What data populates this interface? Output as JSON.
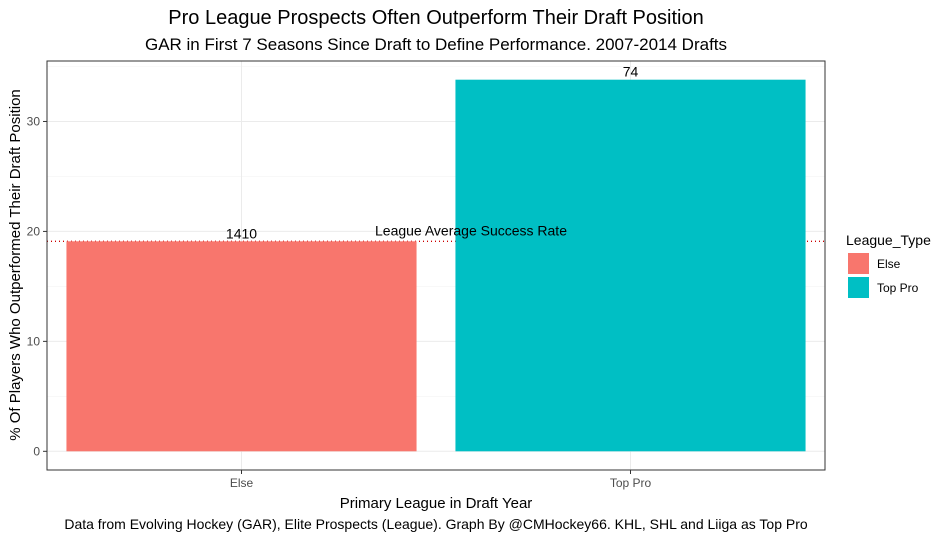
{
  "chart_data": {
    "type": "bar",
    "title": "Pro League Prospects Often Outperform Their Draft Position",
    "subtitle": "GAR in First 7 Seasons Since Draft to Define Performance. 2007-2014 Drafts",
    "xlabel": "Primary League in Draft Year",
    "ylabel": "% Of Players Who Outperformed Their Draft Position",
    "caption": "Data from Evolving Hockey (GAR), Elite Prospects (League). Graph By @CMHockey66. KHL, SHL and Liiga as Top Pro",
    "categories": [
      "Else",
      "Top Pro"
    ],
    "values": [
      19.1,
      33.8
    ],
    "bar_labels": [
      "1410",
      "74"
    ],
    "colors": [
      "#F8766D",
      "#00BFC4"
    ],
    "ylim": [
      -1.7,
      35.5
    ],
    "yticks": [
      0,
      10,
      20,
      30
    ],
    "grid": true,
    "reference_line": {
      "value": 19.1,
      "label": "League Average Success Rate",
      "color": "#cc0000",
      "style": "dotted"
    },
    "legend": {
      "title": "League_Type",
      "position": "right",
      "items": [
        {
          "label": "Else",
          "color": "#F8766D"
        },
        {
          "label": "Top Pro",
          "color": "#00BFC4"
        }
      ]
    }
  }
}
